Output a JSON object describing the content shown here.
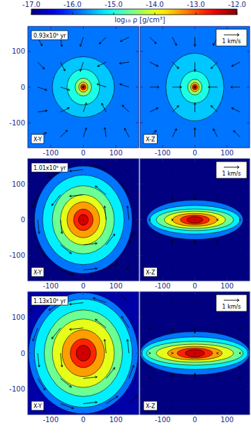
{
  "colorbar": {
    "label": "log₁₀ ρ [g/cm³]",
    "zlim": [
      -17,
      -12
    ],
    "zticks": [
      {
        "value": -17,
        "label": "-17.0"
      },
      {
        "value": -16,
        "label": "-16.0"
      },
      {
        "value": -15,
        "label": "-15.0"
      },
      {
        "value": -14,
        "label": "-14.0"
      },
      {
        "value": -13,
        "label": "-13.0"
      },
      {
        "value": -12,
        "label": "-12.0"
      }
    ]
  },
  "chart_data": [
    {
      "type": "heatmap",
      "title": "0.93x10⁵ yr",
      "label": "X-Y",
      "xlim": [
        -170,
        170
      ],
      "ylim": [
        -170,
        170
      ],
      "xticks": [
        -100,
        0,
        100
      ],
      "yticks": [
        -100,
        0,
        100
      ],
      "background": -15.8,
      "contours": [
        {
          "level": -15.4,
          "rx": 95,
          "ry": 85
        },
        {
          "level": -15.0,
          "rx": 50,
          "ry": 50
        },
        {
          "level": -14.4,
          "rx": 25,
          "ry": 25
        },
        {
          "level": -13.6,
          "rx": 14,
          "ry": 14
        },
        {
          "level": -12.8,
          "rx": 8,
          "ry": 8
        },
        {
          "level": -12.3,
          "rx": 4,
          "ry": 4
        }
      ],
      "vectors": {
        "x": [
          -140,
          -70,
          0,
          70,
          140
        ],
        "y": [
          -140,
          -70,
          0,
          70,
          140
        ],
        "vx": [
          [
            0.57,
            0.45,
            0.2,
            -0.09,
            -0.29
          ],
          [
            0.62,
            0.57,
            0.2,
            -0.29,
            -0.44
          ],
          [
            0.6,
            0.6,
            0,
            -0.6,
            -0.6
          ],
          [
            0.44,
            0.29,
            -0.2,
            -0.57,
            -0.62
          ],
          [
            0.29,
            0.09,
            -0.2,
            -0.45,
            -0.57
          ]
        ],
        "vy": [
          [
            0.28,
            0.44,
            0.6,
            0.62,
            0.57
          ],
          [
            0.09,
            0.28,
            0.6,
            0.57,
            0.45
          ],
          [
            -0.2,
            -0.2,
            0,
            0.2,
            0.2
          ],
          [
            -0.45,
            -0.57,
            -0.6,
            -0.28,
            -0.09
          ],
          [
            -0.57,
            -0.62,
            -0.6,
            -0.44,
            -0.28
          ]
        ]
      }
    },
    {
      "type": "heatmap",
      "label": "X-Z",
      "xlim": [
        -170,
        170
      ],
      "ylim": [
        -170,
        170
      ],
      "xticks": [
        -100,
        0,
        100
      ],
      "yticks": [
        -100,
        0,
        100
      ],
      "tick_labels": "x",
      "background": -15.8,
      "contours": [
        {
          "level": -15.4,
          "rx": 90,
          "ry": 95
        },
        {
          "level": -15.0,
          "rx": 45,
          "ry": 45
        },
        {
          "level": -14.4,
          "rx": 22,
          "ry": 22
        },
        {
          "level": -13.6,
          "rx": 13,
          "ry": 13
        },
        {
          "level": -12.8,
          "rx": 8,
          "ry": 8
        },
        {
          "level": -12.3,
          "rx": 4,
          "ry": 4
        }
      ],
      "vector_scale": {
        "value": 1,
        "label": "1 km/s"
      },
      "vectors": {
        "x": [
          -140,
          -70,
          0,
          70,
          140
        ],
        "y": [
          -140,
          -70,
          0,
          70,
          140
        ],
        "vx": [
          [
            0.42,
            0.27,
            0,
            -0.27,
            -0.42
          ],
          [
            0.54,
            0.42,
            0,
            -0.42,
            -0.54
          ],
          [
            0.6,
            0.6,
            0,
            -0.6,
            -0.6
          ],
          [
            0.54,
            0.42,
            0,
            -0.42,
            -0.54
          ],
          [
            0.42,
            0.27,
            0,
            -0.27,
            -0.42
          ]
        ],
        "vy": [
          [
            0.42,
            0.54,
            0.6,
            0.54,
            0.42
          ],
          [
            0.27,
            0.42,
            0.6,
            0.42,
            0.27
          ],
          [
            0,
            0,
            0,
            0,
            0
          ],
          [
            -0.27,
            -0.42,
            -0.6,
            -0.42,
            -0.27
          ],
          [
            -0.42,
            -0.54,
            -0.6,
            -0.54,
            -0.42
          ]
        ]
      }
    },
    {
      "type": "heatmap",
      "title": "1.01x10⁵ yr",
      "label": "X-Y",
      "xlim": [
        -170,
        170
      ],
      "ylim": [
        -170,
        170
      ],
      "xticks": [
        -100,
        0,
        100
      ],
      "yticks": [
        -100,
        0,
        100
      ],
      "background": -17,
      "contours": [
        {
          "level": -15.8,
          "rx": 150,
          "ry": 150
        },
        {
          "level": -15.2,
          "rx": 125,
          "ry": 125
        },
        {
          "level": -14.6,
          "rx": 95,
          "ry": 95
        },
        {
          "level": -14.0,
          "rx": 70,
          "ry": 70
        },
        {
          "level": -13.4,
          "rx": 50,
          "ry": 50
        },
        {
          "level": -12.8,
          "rx": 30,
          "ry": 30
        },
        {
          "level": -12.4,
          "rx": 15,
          "ry": 15
        }
      ],
      "vectors": {
        "x": [
          -140,
          -70,
          0,
          70,
          140
        ],
        "y": [
          -140,
          -70,
          0,
          70,
          140
        ],
        "vx": [
          [
            0.14,
            0.85,
            0.9,
            0.76,
            -0.14
          ],
          [
            0.49,
            0.71,
            0.9,
            0.57,
            0.31
          ],
          [
            0.1,
            0.1,
            0,
            -0.1,
            -0.1
          ],
          [
            -0.31,
            -0.57,
            -0.9,
            -0.71,
            -0.49
          ],
          [
            0.14,
            -0.76,
            -0.9,
            -0.85,
            -0.14
          ]
        ],
        "vy": [
          [
            0.14,
            -0.31,
            0.1,
            0.49,
            0.14
          ],
          [
            -0.76,
            -0.57,
            0.1,
            0.71,
            0.85
          ],
          [
            -0.9,
            -0.9,
            0,
            0.9,
            0.9
          ],
          [
            -0.85,
            -0.71,
            -0.1,
            0.57,
            0.76
          ],
          [
            -0.14,
            -0.49,
            -0.1,
            0.31,
            -0.14
          ]
        ]
      }
    },
    {
      "type": "heatmap",
      "label": "X-Z",
      "xlim": [
        -170,
        170
      ],
      "ylim": [
        -170,
        170
      ],
      "xticks": [
        -100,
        0,
        100
      ],
      "yticks": [
        -100,
        0,
        100
      ],
      "tick_labels": "x",
      "background": -17,
      "contours": [
        {
          "level": -15.8,
          "rx": 150,
          "ry": 55
        },
        {
          "level": -15.2,
          "rx": 140,
          "ry": 40
        },
        {
          "level": -14.6,
          "rx": 120,
          "ry": 30
        },
        {
          "level": -14.0,
          "rx": 95,
          "ry": 24
        },
        {
          "level": -13.4,
          "rx": 70,
          "ry": 18
        },
        {
          "level": -12.8,
          "rx": 45,
          "ry": 13
        },
        {
          "level": -12.4,
          "rx": 25,
          "ry": 9
        }
      ],
      "vector_scale": {
        "value": 1,
        "label": "1 km/s"
      },
      "vectors": {
        "x": [
          -140,
          -70,
          0,
          70,
          140
        ],
        "y": [
          -140,
          -70,
          0,
          70,
          140
        ],
        "vx": [
          [
            0,
            0,
            0,
            0,
            0
          ],
          [
            0,
            0,
            0,
            0,
            0
          ],
          [
            0.05,
            0.05,
            0,
            -0.05,
            -0.05
          ],
          [
            0,
            0,
            0,
            0,
            0
          ],
          [
            0,
            0,
            0,
            0,
            0
          ]
        ],
        "vy": [
          [
            0,
            0,
            0,
            0,
            0
          ],
          [
            0,
            0.3,
            0.35,
            0.3,
            0
          ],
          [
            0,
            0,
            0,
            0,
            0
          ],
          [
            0,
            -0.3,
            -0.35,
            -0.3,
            0
          ],
          [
            0,
            0,
            0,
            0,
            0
          ]
        ]
      }
    },
    {
      "type": "heatmap",
      "title": "1.13x10⁵ yr",
      "label": "X-Y",
      "xlim": [
        -170,
        170
      ],
      "ylim": [
        -170,
        170
      ],
      "xticks": [
        -100,
        0,
        100
      ],
      "yticks": [
        -100,
        0,
        100
      ],
      "background": -16.8,
      "contours": [
        {
          "level": -15.8,
          "rx": 168,
          "ry": 168
        },
        {
          "level": -15.2,
          "rx": 150,
          "ry": 150
        },
        {
          "level": -14.6,
          "rx": 120,
          "ry": 120
        },
        {
          "level": -14.0,
          "rx": 95,
          "ry": 95
        },
        {
          "level": -13.4,
          "rx": 65,
          "ry": 65
        },
        {
          "level": -12.8,
          "rx": 40,
          "ry": 40
        },
        {
          "level": -12.4,
          "rx": 22,
          "ry": 22
        }
      ],
      "vectors": {
        "x": [
          -140,
          -70,
          0,
          70,
          140
        ],
        "y": [
          -140,
          -70,
          0,
          70,
          140
        ],
        "vx": [
          [
            0.5,
            0.85,
            0.9,
            0.76,
            0.5
          ],
          [
            0.49,
            0.71,
            0.9,
            0.57,
            0.31
          ],
          [
            0.1,
            0.1,
            0,
            -0.1,
            -0.1
          ],
          [
            -0.31,
            -0.57,
            -0.9,
            -0.71,
            -0.49
          ],
          [
            -0.5,
            -0.76,
            -0.9,
            -0.85,
            -0.5
          ]
        ],
        "vy": [
          [
            -0.5,
            -0.31,
            0.1,
            0.49,
            0.5
          ],
          [
            -0.76,
            -0.57,
            0.1,
            0.71,
            0.85
          ],
          [
            -0.9,
            -0.9,
            0,
            0.9,
            0.9
          ],
          [
            -0.85,
            -0.71,
            -0.1,
            0.57,
            0.76
          ],
          [
            -0.5,
            -0.49,
            -0.1,
            0.31,
            0.5
          ]
        ]
      }
    },
    {
      "type": "heatmap",
      "label": "X-Z",
      "xlim": [
        -170,
        170
      ],
      "ylim": [
        -170,
        170
      ],
      "xticks": [
        -100,
        0,
        100
      ],
      "yticks": [
        -100,
        0,
        100
      ],
      "tick_labels": "x",
      "background": -17,
      "contours": [
        {
          "level": -15.8,
          "rx": 170,
          "ry": 60
        },
        {
          "level": -15.2,
          "rx": 165,
          "ry": 45
        },
        {
          "level": -14.6,
          "rx": 150,
          "ry": 33
        },
        {
          "level": -14.0,
          "rx": 120,
          "ry": 25
        },
        {
          "level": -13.4,
          "rx": 85,
          "ry": 19
        },
        {
          "level": -12.8,
          "rx": 55,
          "ry": 14
        },
        {
          "level": -12.4,
          "rx": 30,
          "ry": 10
        }
      ],
      "vector_scale": {
        "value": 1,
        "label": "1 km/s"
      },
      "vectors": {
        "x": [
          -140,
          -70,
          0,
          70,
          140
        ],
        "y": [
          -140,
          -70,
          0,
          70,
          140
        ],
        "vx": [
          [
            0,
            0,
            0,
            0,
            0
          ],
          [
            0,
            0,
            0,
            0,
            0
          ],
          [
            0.05,
            0.05,
            0,
            -0.05,
            -0.05
          ],
          [
            0,
            0,
            0,
            0,
            0
          ],
          [
            0,
            0,
            0,
            0,
            0
          ]
        ],
        "vy": [
          [
            0,
            0,
            0,
            0,
            0
          ],
          [
            0.1,
            0.3,
            0.35,
            0.3,
            0.1
          ],
          [
            0,
            0,
            0,
            0,
            0
          ],
          [
            -0.1,
            -0.3,
            -0.35,
            -0.3,
            -0.1
          ],
          [
            0,
            0,
            0,
            0,
            0
          ]
        ]
      }
    }
  ]
}
